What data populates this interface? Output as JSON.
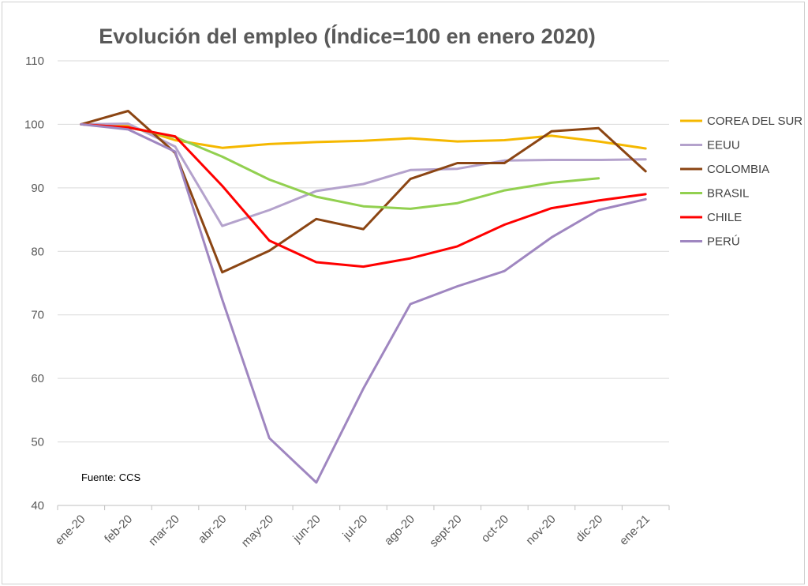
{
  "chart_data": {
    "type": "line",
    "title": "Evolución del empleo (Índice=100 en enero 2020)",
    "xlabel": "",
    "ylabel": "",
    "ylim": [
      40,
      110
    ],
    "yticks": [
      40,
      50,
      60,
      70,
      80,
      90,
      100,
      110
    ],
    "grid": true,
    "legend_position": "right",
    "note": "Fuente: CCS",
    "categories": [
      "ene-20",
      "feb-20",
      "mar-20",
      "abr-20",
      "may-20",
      "jun-20",
      "jul-20",
      "ago-20",
      "sept-20",
      "oct-20",
      "nov-20",
      "dic-20",
      "ene-21"
    ],
    "series": [
      {
        "name": "COREA DEL SUR",
        "color": "#F5B800",
        "values": [
          100,
          99.8,
          97.5,
          96.3,
          96.9,
          97.2,
          97.4,
          97.8,
          97.3,
          97.5,
          98.2,
          97.3,
          96.2
        ]
      },
      {
        "name": "EEUU",
        "color": "#B4A2CC",
        "values": [
          100,
          100.1,
          96.5,
          84.0,
          86.5,
          89.5,
          90.6,
          92.8,
          93.0,
          94.3,
          94.4,
          94.4,
          94.5
        ]
      },
      {
        "name": "COLOMBIA",
        "color": "#8B4513",
        "values": [
          100,
          102.1,
          95.5,
          76.7,
          80.1,
          85.1,
          83.5,
          91.4,
          93.9,
          93.9,
          98.9,
          99.4,
          92.6
        ]
      },
      {
        "name": "BRASIL",
        "color": "#92D050",
        "values": [
          100,
          99.5,
          98.0,
          94.9,
          91.3,
          88.6,
          87.1,
          86.7,
          87.6,
          89.6,
          90.8,
          91.5,
          null
        ]
      },
      {
        "name": "CHILE",
        "color": "#FF0000",
        "values": [
          100,
          99.5,
          98.1,
          90.3,
          81.7,
          78.3,
          77.6,
          78.9,
          80.8,
          84.2,
          86.8,
          88.0,
          89.0
        ]
      },
      {
        "name": "PERÚ",
        "color": "#9F86C0",
        "values": [
          100,
          99.2,
          95.7,
          72.4,
          50.6,
          43.6,
          58.4,
          71.7,
          74.5,
          76.9,
          82.2,
          86.5,
          88.2
        ]
      }
    ]
  }
}
